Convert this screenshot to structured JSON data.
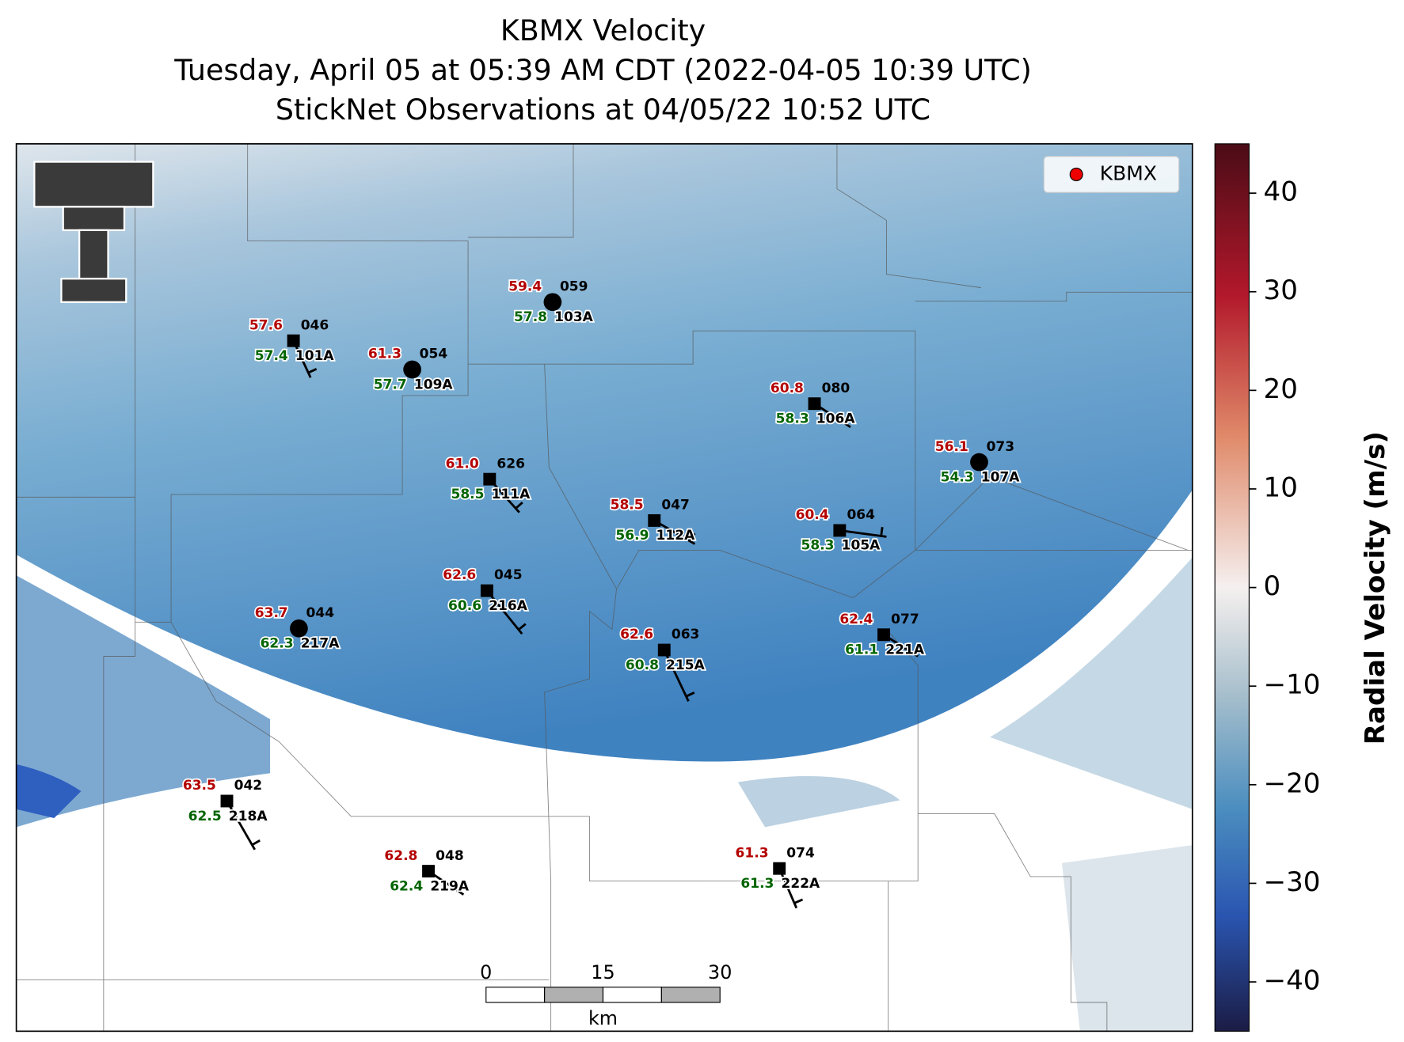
{
  "title": [
    "KBMX Velocity",
    "Tuesday, April 05 at 05:39 AM CDT (2022-04-05 10:39 UTC)",
    "StickNet Observations at 04/05/22 10:52 UTC"
  ],
  "legend": "KBMX",
  "colorbar": {
    "label": "Radial Velocity (m/s)",
    "lim": [
      -45,
      45
    ],
    "ticks": [
      40,
      30,
      20,
      10,
      0,
      {
        "value": -10,
        "label": "−10"
      },
      {
        "value": -20,
        "label": "−20"
      },
      {
        "value": -30,
        "label": "−30"
      },
      {
        "value": -40,
        "label": "−40"
      }
    ]
  },
  "stations": [
    {
      "temperature": "57.6",
      "dewpoint": "57.4",
      "id": "046",
      "probe": "101A"
    },
    {
      "temperature": "61.3",
      "dewpoint": "57.7",
      "id": "054",
      "probe": "109A"
    },
    {
      "temperature": "59.4",
      "dewpoint": "57.8",
      "id": "059",
      "probe": "103A"
    },
    {
      "temperature": "60.8",
      "dewpoint": "58.3",
      "id": "080",
      "probe": "106A"
    },
    {
      "temperature": "56.1",
      "dewpoint": "54.3",
      "id": "073",
      "probe": "107A"
    },
    {
      "temperature": "61.0",
      "dewpoint": "58.5",
      "id": "626",
      "probe": "111A"
    },
    {
      "temperature": "58.5",
      "dewpoint": "56.9",
      "id": "047",
      "probe": "112A"
    },
    {
      "temperature": "60.4",
      "dewpoint": "58.3",
      "id": "064",
      "probe": "105A"
    },
    {
      "temperature": "62.6",
      "dewpoint": "60.6",
      "id": "045",
      "probe": "216A"
    },
    {
      "temperature": "63.7",
      "dewpoint": "62.3",
      "id": "044",
      "probe": "217A"
    },
    {
      "temperature": "62.6",
      "dewpoint": "60.8",
      "id": "063",
      "probe": "215A"
    },
    {
      "temperature": "62.4",
      "dewpoint": "61.1",
      "id": "077",
      "probe": "221A"
    },
    {
      "temperature": "63.5",
      "dewpoint": "62.5",
      "id": "042",
      "probe": "218A"
    },
    {
      "temperature": "62.8",
      "dewpoint": "62.4",
      "id": "048",
      "probe": "219A"
    },
    {
      "temperature": "61.3",
      "dewpoint": "61.3",
      "id": "074",
      "probe": "222A"
    }
  ],
  "scale_bar": {
    "ticks": [
      "0",
      "15",
      "30"
    ],
    "unit": "km"
  }
}
